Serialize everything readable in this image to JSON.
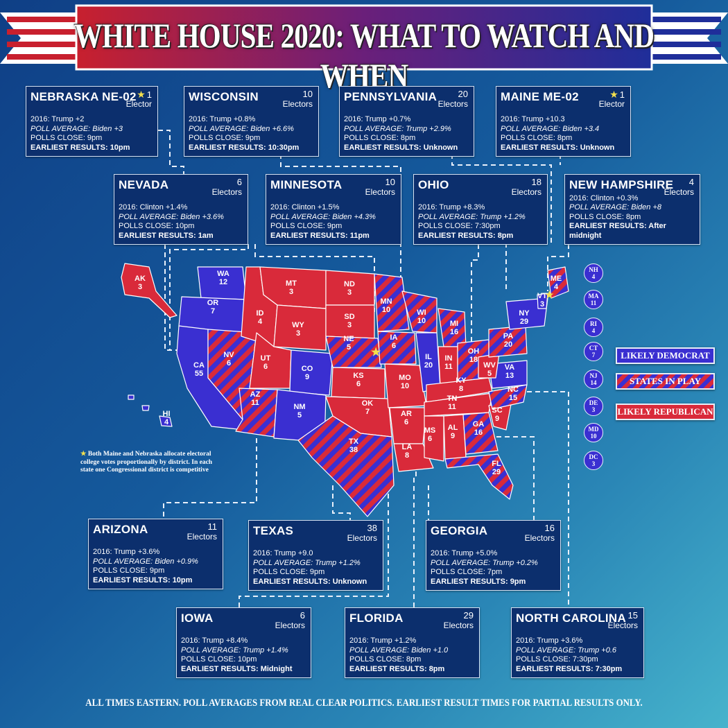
{
  "title": "WHITE HOUSE 2020: WHAT TO WATCH AND WHEN",
  "cards": {
    "ne02": {
      "name": "NEBRASKA NE-02",
      "count": "1",
      "elabel": "Elector",
      "l1": "2016: Trump +2",
      "l2": "POLL AVERAGE: Biden +3",
      "l3": "POLLS CLOSE: 9pm",
      "l4": "EARLIEST RESULTS: 10pm"
    },
    "wi": {
      "name": "WISCONSIN",
      "count": "10",
      "elabel": "Electors",
      "l1": "2016: Trump +0.8%",
      "l2": "POLL AVERAGE: Biden +6.6%",
      "l3": "POLLS CLOSE: 9pm",
      "l4": "EARLIEST RESULTS: 10:30pm"
    },
    "pa": {
      "name": "PENNSYLVANIA",
      "count": "20",
      "elabel": "Electors",
      "l1": "2016: Trump +0.7%",
      "l2": "POLL AVERAGE: Trump +2.9%",
      "l3": "POLLS CLOSE: 8pm",
      "l4": "EARLIEST RESULTS: Unknown"
    },
    "me02": {
      "name": "MAINE ME-02",
      "count": "1",
      "elabel": "Elector",
      "l1": "2016: Trump +10.3",
      "l2": "POLL AVERAGE: Biden +3.4",
      "l3": "POLLS CLOSE: 8pm",
      "l4": "EARLIEST RESULTS: Unknown"
    },
    "nv": {
      "name": "NEVADA",
      "count": "6",
      "elabel": "Electors",
      "l1": "2016: Clinton +1.4%",
      "l2": "POLL AVERAGE: Biden +3.6%",
      "l3": "POLLS CLOSE: 10pm",
      "l4": "EARLIEST RESULTS: 1am"
    },
    "mn": {
      "name": "MINNESOTA",
      "count": "10",
      "elabel": "Electors",
      "l1": "2016: Clinton +1.5%",
      "l2": "POLL AVERAGE: Biden +4.3%",
      "l3": "POLLS CLOSE: 9pm",
      "l4": "EARLIEST RESULTS: 11pm"
    },
    "oh": {
      "name": "OHIO",
      "count": "18",
      "elabel": "Electors",
      "l1": "2016: Trump +8.3%",
      "l2": "POLL AVERAGE: Trump +1.2%",
      "l3": "POLLS CLOSE: 7:30pm",
      "l4": "EARLIEST RESULTS: 8pm"
    },
    "nh": {
      "name": "NEW HAMPSHIRE",
      "count": "4",
      "elabel": "Electors",
      "l1": "2016: Clinton +0.3%",
      "l2": "POLL AVERAGE: Biden +8",
      "l3": "POLLS CLOSE: 8pm",
      "l4": "EARLIEST RESULTS: After midnight"
    },
    "az": {
      "name": "ARIZONA",
      "count": "11",
      "elabel": "Electors",
      "l1": "2016: Trump +3.6%",
      "l2": "POLL AVERAGE: Biden +0.9%",
      "l3": "POLLS CLOSE: 9pm",
      "l4": "EARLIEST RESULTS: 10pm"
    },
    "tx": {
      "name": "TEXAS",
      "count": "38",
      "elabel": "Electors",
      "l1": "2016: Trump +9.0",
      "l2": "POLL AVERAGE: Trump +1.2%",
      "l3": "POLLS CLOSE: 9pm",
      "l4": "EARLIEST RESULTS: Unknown"
    },
    "ga": {
      "name": "GEORGIA",
      "count": "16",
      "elabel": "Electors",
      "l1": "2016: Trump +5.0%",
      "l2": "POLL AVERAGE: Trump +0.2%",
      "l3": "POLLS CLOSE: 7pm",
      "l4": "EARLIEST RESULTS: 9pm"
    },
    "ia": {
      "name": "IOWA",
      "count": "6",
      "elabel": "Electors",
      "l1": "2016: Trump +8.4%",
      "l2": "POLL AVERAGE: Trump +1.4%",
      "l3": "POLLS CLOSE: 10pm",
      "l4": "EARLIEST RESULTS: Midnight"
    },
    "fl": {
      "name": "FLORIDA",
      "count": "29",
      "elabel": "Electors",
      "l1": "2016: Trump +1.2%",
      "l2": "POLL AVERAGE: Biden +1.0",
      "l3": "POLLS CLOSE: 8pm",
      "l4": "EARLIEST RESULTS: 8pm"
    },
    "nc": {
      "name": "NORTH CAROLINA",
      "count": "15",
      "elabel": "Electors",
      "l1": "2016: Trump +3.6%",
      "l2": "POLL AVERAGE: Trump +0.6",
      "l3": "POLLS CLOSE: 7:30pm",
      "l4": "EARLIEST RESULTS: 7:30pm"
    }
  },
  "legend": {
    "dem": "LIKELY DEMOCRAT",
    "play": "STATES IN PLAY",
    "rep": "LIKELY REPUBLICAN"
  },
  "circles": [
    {
      "abbr": "NH",
      "ev": "4"
    },
    {
      "abbr": "MA",
      "ev": "11"
    },
    {
      "abbr": "RI",
      "ev": "4"
    },
    {
      "abbr": "CT",
      "ev": "7"
    },
    {
      "abbr": "NJ",
      "ev": "14"
    },
    {
      "abbr": "DE",
      "ev": "3"
    },
    {
      "abbr": "MD",
      "ev": "10"
    },
    {
      "abbr": "DC",
      "ev": "3"
    }
  ],
  "states": [
    {
      "abbr": "WA",
      "ev": "12"
    },
    {
      "abbr": "OR",
      "ev": "7"
    },
    {
      "abbr": "CA",
      "ev": "55"
    },
    {
      "abbr": "NV",
      "ev": "6"
    },
    {
      "abbr": "ID",
      "ev": "4"
    },
    {
      "abbr": "MT",
      "ev": "3"
    },
    {
      "abbr": "WY",
      "ev": "3"
    },
    {
      "abbr": "UT",
      "ev": "6"
    },
    {
      "abbr": "CO",
      "ev": "9"
    },
    {
      "abbr": "AZ",
      "ev": "11"
    },
    {
      "abbr": "NM",
      "ev": "5"
    },
    {
      "abbr": "ND",
      "ev": "3"
    },
    {
      "abbr": "SD",
      "ev": "3"
    },
    {
      "abbr": "NE",
      "ev": "5"
    },
    {
      "abbr": "KS",
      "ev": "6"
    },
    {
      "abbr": "OK",
      "ev": "7"
    },
    {
      "abbr": "TX",
      "ev": "38"
    },
    {
      "abbr": "MN",
      "ev": "10"
    },
    {
      "abbr": "IA",
      "ev": "6"
    },
    {
      "abbr": "MO",
      "ev": "10"
    },
    {
      "abbr": "AR",
      "ev": "6"
    },
    {
      "abbr": "LA",
      "ev": "8"
    },
    {
      "abbr": "WI",
      "ev": "10"
    },
    {
      "abbr": "IL",
      "ev": "20"
    },
    {
      "abbr": "MI",
      "ev": "16"
    },
    {
      "abbr": "IN",
      "ev": "11"
    },
    {
      "abbr": "OH",
      "ev": "18"
    },
    {
      "abbr": "KY",
      "ev": "8"
    },
    {
      "abbr": "TN",
      "ev": "11"
    },
    {
      "abbr": "MS",
      "ev": "6"
    },
    {
      "abbr": "AL",
      "ev": "9"
    },
    {
      "abbr": "GA",
      "ev": "16"
    },
    {
      "abbr": "FL",
      "ev": "29"
    },
    {
      "abbr": "SC",
      "ev": "9"
    },
    {
      "abbr": "NC",
      "ev": "15"
    },
    {
      "abbr": "VA",
      "ev": "13"
    },
    {
      "abbr": "WV",
      "ev": "5"
    },
    {
      "abbr": "PA",
      "ev": "20"
    },
    {
      "abbr": "NY",
      "ev": "29"
    },
    {
      "abbr": "VT",
      "ev": "3"
    },
    {
      "abbr": "ME",
      "ev": "4"
    },
    {
      "abbr": "AK",
      "ev": "3"
    },
    {
      "abbr": "HI",
      "ev": "4"
    }
  ],
  "footnote": "Both Maine and Nebraska allocate electoral college votes proportionally by district. In each state one Congressional district is competitive",
  "footer": "ALL TIMES EASTERN. POLL AVERAGES FROM REAL CLEAR POLITICS. EARLIEST RESULT TIMES FOR PARTIAL RESULTS ONLY.",
  "colors": {
    "democrat": "#3a2fd1",
    "republican": "#d92a3a",
    "background": "#155a9c"
  }
}
